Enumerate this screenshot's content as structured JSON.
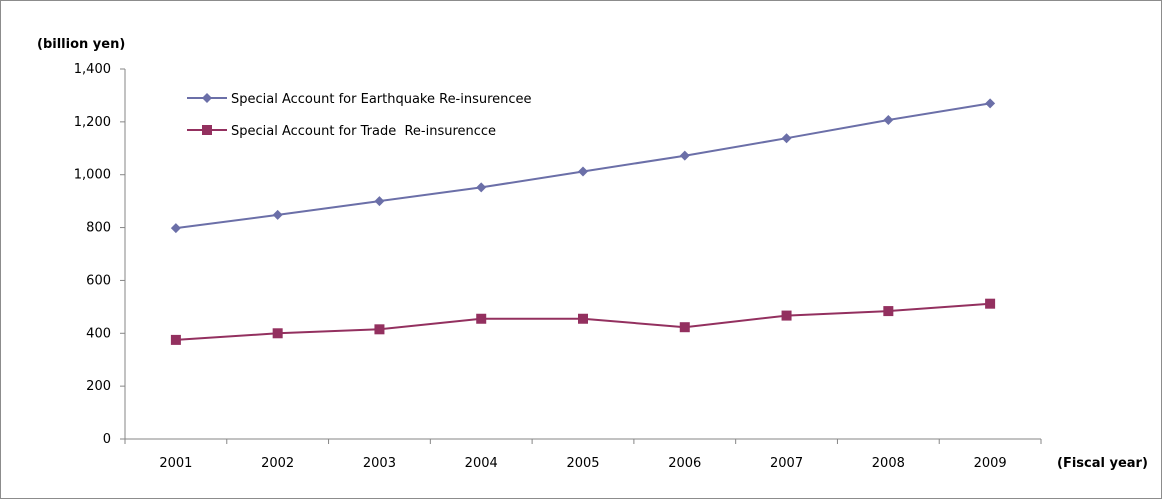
{
  "chart_data": {
    "type": "line",
    "title": "",
    "ylabel": "(billion yen)",
    "xlabel": "(Fiscal year)",
    "categories": [
      "2001",
      "2002",
      "2003",
      "2004",
      "2005",
      "2006",
      "2007",
      "2008",
      "2009"
    ],
    "ylim": [
      0,
      1400
    ],
    "yticks": [
      0,
      200,
      400,
      600,
      800,
      1000,
      1200,
      1400
    ],
    "ytick_labels": [
      "0",
      "200",
      "400",
      "600",
      "800",
      "1,000",
      "1,200",
      "1,400"
    ],
    "grid": false,
    "legend_position": "top-left",
    "series": [
      {
        "name": "Special Account for Earthquake Re-insurencee",
        "color": "#6b6fa8",
        "marker": "diamond",
        "values": [
          798,
          848,
          900,
          952,
          1012,
          1072,
          1138,
          1207,
          1270
        ]
      },
      {
        "name": "Special Account for Trade  Re-insurencce",
        "color": "#93305f",
        "marker": "square",
        "values": [
          375,
          400,
          415,
          455,
          455,
          423,
          467,
          484,
          512
        ]
      }
    ]
  }
}
